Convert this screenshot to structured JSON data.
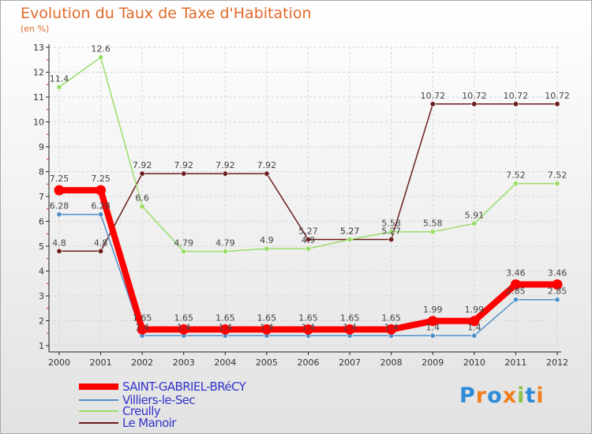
{
  "title": "Evolution du Taux de Taxe d'Habitation",
  "unit": "(en %)",
  "legend": [
    {
      "name": "SAINT-GABRIEL-BRéCY",
      "color": "#ff0000"
    },
    {
      "name": "Villiers-le-Sec",
      "color": "#4f8fc9"
    },
    {
      "name": "Creully",
      "color": "#99dd66"
    },
    {
      "name": "Le Manoir",
      "color": "#6b1c1c"
    }
  ],
  "logo": {
    "text": "Proxiti",
    "colors": [
      "#2e8bd8",
      "#f07f1e",
      "#2e8bd8",
      "#f07f1e",
      "#8bc34a",
      "#2e8bd8",
      "#f07f1e"
    ]
  },
  "chart_data": {
    "type": "line",
    "title": "Evolution du Taux de Taxe d'Habitation",
    "ylabel": "(en %)",
    "xlabel": "",
    "x": [
      "2000",
      "2001",
      "2002",
      "2003",
      "2004",
      "2005",
      "2006",
      "2007",
      "2008",
      "2009",
      "2010",
      "2011",
      "2012"
    ],
    "ylim": [
      1,
      13
    ],
    "yticks": [
      "1",
      "2",
      "3",
      "4",
      "5",
      "6",
      "7",
      "8",
      "9",
      "10",
      "11",
      "12",
      "13"
    ],
    "series": [
      {
        "name": "SAINT-GABRIEL-BRéCY",
        "color": "#ff0000",
        "values": [
          7.25,
          7.25,
          1.65,
          1.65,
          1.65,
          1.65,
          1.65,
          1.65,
          1.65,
          1.99,
          1.99,
          3.46,
          3.46
        ],
        "labels": [
          "7.25",
          "7.25",
          "1.65",
          "1.65",
          "1.65",
          "1.65",
          "1.65",
          "1.65",
          "1.65",
          "1.99",
          "1.99",
          "3.46",
          "3.46"
        ]
      },
      {
        "name": "Villiers-le-Sec",
        "color": "#4f8fc9",
        "values": [
          6.28,
          6.28,
          1.4,
          1.4,
          1.4,
          1.4,
          1.4,
          1.4,
          1.4,
          1.4,
          1.4,
          2.85,
          2.85
        ],
        "labels": [
          "6.28",
          "6.28",
          "1.4",
          "1.4",
          "1.4",
          "1.4",
          "1.4",
          "1.4",
          "1.4",
          "1.4",
          "1.4",
          "2.85",
          "2.85"
        ]
      },
      {
        "name": "Creully",
        "color": "#99dd66",
        "values": [
          11.4,
          12.6,
          6.6,
          4.79,
          4.79,
          4.9,
          4.9,
          5.27,
          5.58,
          5.58,
          5.91,
          7.52,
          7.52
        ],
        "labels": [
          "11.4",
          "12.6",
          "6.6",
          "4.79",
          "4.79",
          "4.9",
          "4.9",
          "5.27",
          "5.58",
          "5.58",
          "5.91",
          "7.52",
          "7.52"
        ]
      },
      {
        "name": "Le Manoir",
        "color": "#6b1c1c",
        "values": [
          4.8,
          4.8,
          7.92,
          7.92,
          7.92,
          7.92,
          5.27,
          5.27,
          5.27,
          10.72,
          10.72,
          10.72,
          10.72
        ],
        "labels": [
          "4.8",
          "4.8",
          "7.92",
          "7.92",
          "7.92",
          "7.92",
          "5.27",
          "5.27",
          "5.27",
          "10.72",
          "10.72",
          "10.72",
          "10.72"
        ]
      }
    ]
  }
}
